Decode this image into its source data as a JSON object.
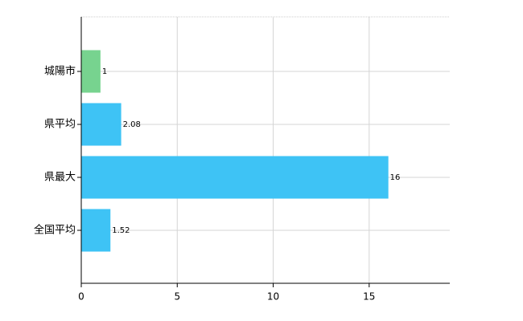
{
  "chart_data": {
    "type": "hbar",
    "categories": [
      "城陽市",
      "県平均",
      "県最大",
      "全国平均"
    ],
    "values": [
      1,
      2.08,
      16,
      1.52
    ],
    "colors": [
      "#77d38f",
      "#3ec3f5",
      "#3ec3f5",
      "#3ec3f5"
    ],
    "xlim": [
      0,
      19.2
    ],
    "xticks": [
      0,
      5,
      10,
      15
    ],
    "grid": true
  }
}
